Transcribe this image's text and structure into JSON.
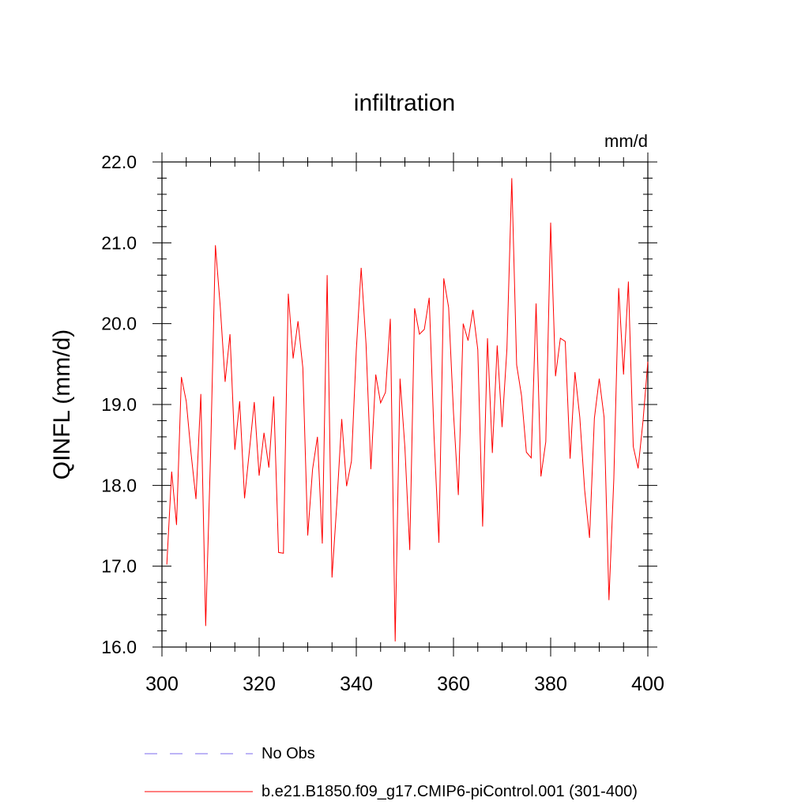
{
  "chart_data": {
    "type": "line",
    "title": "infiltration",
    "units": "mm/d",
    "xlabel": "",
    "ylabel": "QINFL  (mm/d)",
    "xlim": [
      300,
      400
    ],
    "ylim": [
      16.0,
      22.0
    ],
    "x_ticks": [
      300,
      320,
      340,
      360,
      380,
      400
    ],
    "x_tick_labels": [
      "300",
      "320",
      "340",
      "360",
      "380",
      "400"
    ],
    "y_ticks": [
      16.0,
      17.0,
      18.0,
      19.0,
      20.0,
      21.0,
      22.0
    ],
    "y_tick_labels": [
      "16.0",
      "17.0",
      "18.0",
      "19.0",
      "20.0",
      "21.0",
      "22.0"
    ],
    "series": [
      {
        "name": "b.e21.B1850.f09_g17.CMIP6-piControl.001 (301-400)",
        "color": "#ff0000",
        "style": "solid",
        "x": [
          301,
          302,
          303,
          304,
          305,
          306,
          307,
          308,
          309,
          310,
          311,
          312,
          313,
          314,
          315,
          316,
          317,
          318,
          319,
          320,
          321,
          322,
          323,
          324,
          325,
          326,
          327,
          328,
          329,
          330,
          331,
          332,
          333,
          334,
          335,
          336,
          337,
          338,
          339,
          340,
          341,
          342,
          343,
          344,
          345,
          346,
          347,
          348,
          349,
          350,
          351,
          352,
          353,
          354,
          355,
          356,
          357,
          358,
          359,
          360,
          361,
          362,
          363,
          364,
          365,
          366,
          367,
          368,
          369,
          370,
          371,
          372,
          373,
          374,
          375,
          376,
          377,
          378,
          379,
          380,
          381,
          382,
          383,
          384,
          385,
          386,
          387,
          388,
          389,
          390,
          391,
          392,
          393,
          394,
          395,
          396,
          397,
          398,
          399,
          400
        ],
        "values": [
          17.02,
          18.17,
          17.51,
          19.34,
          19.04,
          18.39,
          17.83,
          19.13,
          16.26,
          18.38,
          20.97,
          20.21,
          19.28,
          19.87,
          18.44,
          19.04,
          17.84,
          18.43,
          19.03,
          18.12,
          18.65,
          18.22,
          19.1,
          17.17,
          17.16,
          20.37,
          19.57,
          20.03,
          19.45,
          17.38,
          18.2,
          18.6,
          17.28,
          20.6,
          16.86,
          17.78,
          18.82,
          17.99,
          18.3,
          19.67,
          20.69,
          19.75,
          18.2,
          19.37,
          19.02,
          19.15,
          20.06,
          16.07,
          19.32,
          18.47,
          17.2,
          20.19,
          19.87,
          19.93,
          20.32,
          18.61,
          17.29,
          20.56,
          20.2,
          18.9,
          17.88,
          20.0,
          19.79,
          20.17,
          19.68,
          17.49,
          19.82,
          18.4,
          19.73,
          18.72,
          19.69,
          21.8,
          19.49,
          19.11,
          18.41,
          18.34,
          20.25,
          18.11,
          18.54,
          21.25,
          19.35,
          19.82,
          19.78,
          18.33,
          19.4,
          18.84,
          17.94,
          17.35,
          18.83,
          19.32,
          18.84,
          16.58,
          18.08,
          20.44,
          19.37,
          20.52,
          18.48,
          18.21,
          18.79,
          19.53
        ]
      },
      {
        "name": "No Obs",
        "color": "#7b68ee",
        "style": "dashed",
        "x": [],
        "values": []
      }
    ],
    "legend": {
      "placement": "bottom",
      "entries": [
        "No Obs",
        "b.e21.B1850.f09_g17.CMIP6-piControl.001 (301-400)"
      ]
    }
  }
}
